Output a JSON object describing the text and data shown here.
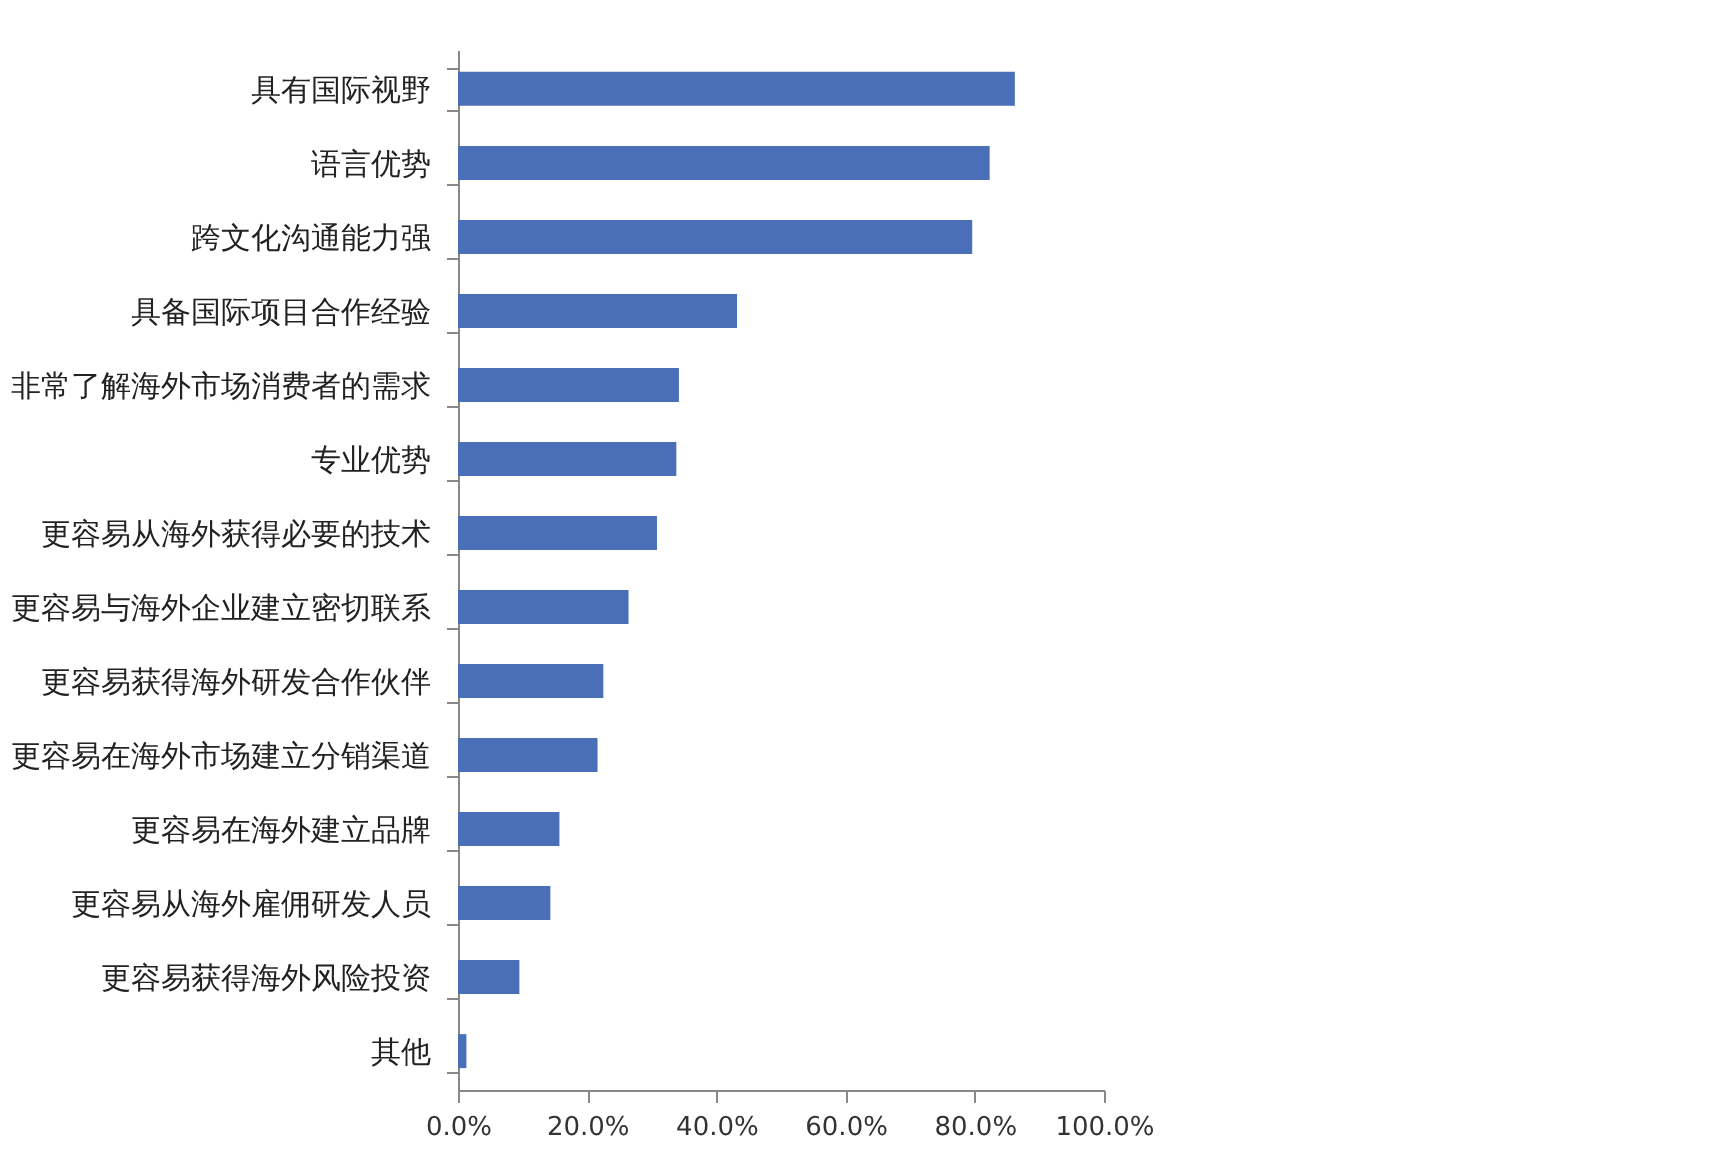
{
  "chart_data": {
    "type": "bar",
    "orientation": "horizontal",
    "categories": [
      "具有国际视野",
      "语言优势",
      "跨文化沟通能力强",
      "具备国际项目合作经验",
      "非常了解海外市场消费者的需求",
      "专业优势",
      "更容易从海外获得必要的技术",
      "更容易与海外企业建立密切联系",
      "更容易获得海外研发合作伙伴",
      "更容易在海外市场建立分销渠道",
      "更容易在海外建立品牌",
      "更容易从海外雇佣研发人员",
      "更容易获得海外风险投资",
      "其他"
    ],
    "values": [
      86.2,
      82.3,
      79.6,
      43.2,
      34.2,
      33.8,
      30.8,
      26.4,
      22.5,
      21.6,
      15.7,
      14.3,
      9.5,
      1.3
    ],
    "color": "#4a6fb8",
    "xlim": [
      0,
      100
    ],
    "xticks": [
      {
        "value": 0,
        "label": "0.0%"
      },
      {
        "value": 20,
        "label": "20.0%"
      },
      {
        "value": 40,
        "label": "40.0%"
      },
      {
        "value": 60,
        "label": "60.0%"
      },
      {
        "value": 80,
        "label": "80.0%"
      },
      {
        "value": 100,
        "label": "100.0%"
      }
    ],
    "grid": false
  }
}
